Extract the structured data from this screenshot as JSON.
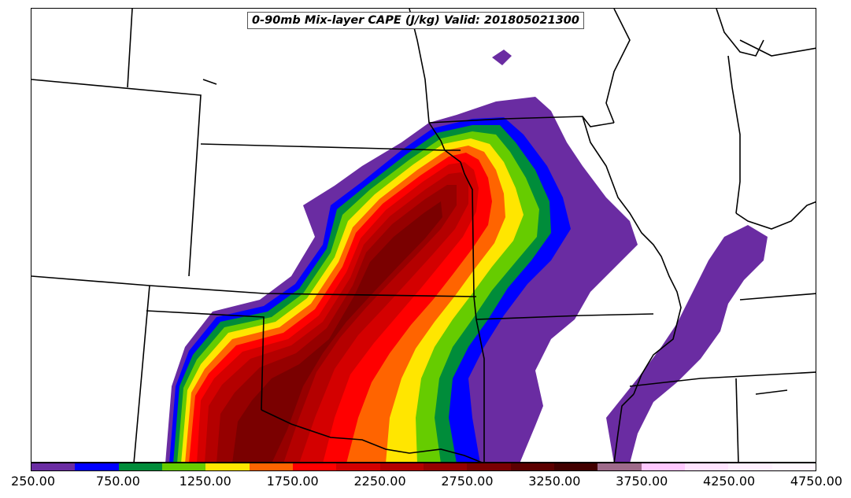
{
  "title": "0-90mb Mix-layer CAPE (J/kg) Valid: 201805021300",
  "colorbar": {
    "colors": [
      "#6a2ca2",
      "#0000ff",
      "#008c3a",
      "#66cc00",
      "#ffe600",
      "#ff6400",
      "#ff0000",
      "#d40000",
      "#b40000",
      "#960000",
      "#7a0000",
      "#5c0000",
      "#420000",
      "#9e6a8a",
      "#ffc8ff",
      "#ffe4ff",
      "#fff0ff",
      "#fff8ff"
    ],
    "tick_labels": [
      "250.00",
      "750.00",
      "1250.00",
      "1750.00",
      "2250.00",
      "2750.00",
      "3250.00",
      "3750.00",
      "4250.00",
      "4750.00"
    ]
  }
}
